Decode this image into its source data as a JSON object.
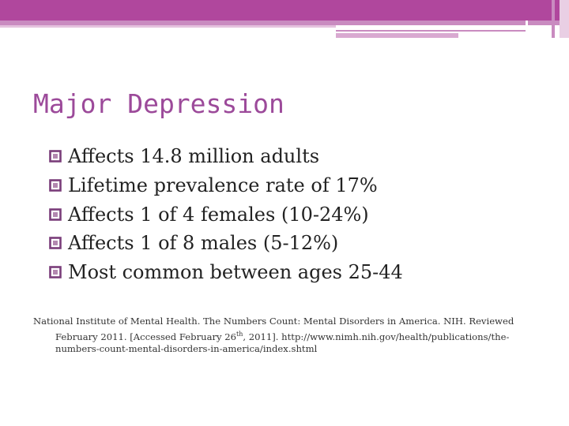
{
  "slide": {
    "title": "Major Depression",
    "bullets": [
      "Affects 14.8 million adults",
      "Lifetime prevalence rate of 17%",
      "Affects 1 of 4 females (10-24%)",
      "Affects 1 of 8 males (5-12%)",
      "Most common between ages 25-44"
    ],
    "bullet_icon": "hollow-square-bullet-icon",
    "reference": {
      "line1": "National  Institute of Mental Health. The Numbers Count: Mental Disorders in America.  NIH. Reviewed",
      "line2a": "February 2011. [Accessed  February 26",
      "sup": "th",
      "line2b": ", 2011]. http://www.nimh.nih.gov/health/publications/the-",
      "line3": "numbers-count-mental-disorders-in-america/index.shtml"
    }
  },
  "colors": {
    "accent": "#b0479d",
    "title": "#9c4a9a",
    "bullet_icon": "#7a3d7a"
  }
}
